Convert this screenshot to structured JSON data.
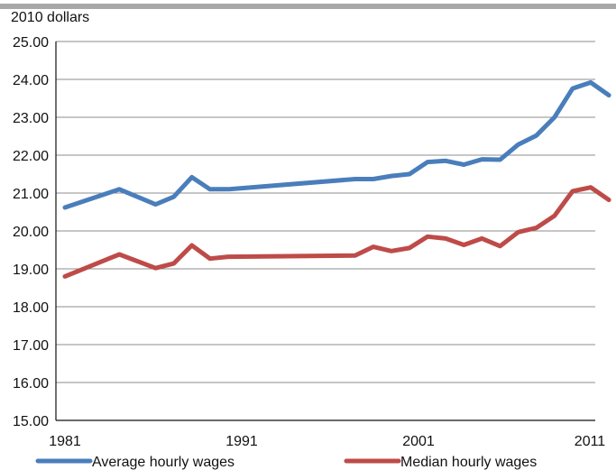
{
  "chart_data": {
    "type": "line",
    "unit_label": "2010 dollars",
    "x_tick_labels": [
      "1981",
      "1991",
      "2001",
      "2011"
    ],
    "y_tick_labels": [
      "15.00",
      "16.00",
      "17.00",
      "18.00",
      "19.00",
      "20.00",
      "21.00",
      "22.00",
      "23.00",
      "24.00",
      "25.00"
    ],
    "xlim": [
      1981,
      2010
    ],
    "ylim": [
      15,
      25
    ],
    "grid": "horizontal",
    "legend_position": "bottom",
    "x": [
      1981,
      1984,
      1986,
      1987,
      1988,
      1989,
      1990,
      1997,
      1998,
      1999,
      2000,
      2001,
      2002,
      2003,
      2004,
      2005,
      2006,
      2007,
      2008,
      2009,
      2010,
      2011
    ],
    "series": [
      {
        "name": "Average hourly wages",
        "color": "#4a7ebb",
        "values": [
          20.62,
          21.1,
          20.7,
          20.9,
          21.42,
          21.1,
          21.1,
          21.37,
          21.37,
          21.45,
          21.5,
          21.82,
          21.85,
          21.75,
          21.89,
          21.88,
          22.28,
          22.52,
          23.0,
          23.76,
          23.92,
          23.58
        ]
      },
      {
        "name": "Median hourly wages",
        "color": "#be4b48",
        "values": [
          18.8,
          19.38,
          19.02,
          19.14,
          19.62,
          19.27,
          19.32,
          19.35,
          19.58,
          19.47,
          19.55,
          19.85,
          19.8,
          19.63,
          19.8,
          19.6,
          19.97,
          20.08,
          20.4,
          21.05,
          21.15,
          20.82
        ]
      }
    ]
  }
}
